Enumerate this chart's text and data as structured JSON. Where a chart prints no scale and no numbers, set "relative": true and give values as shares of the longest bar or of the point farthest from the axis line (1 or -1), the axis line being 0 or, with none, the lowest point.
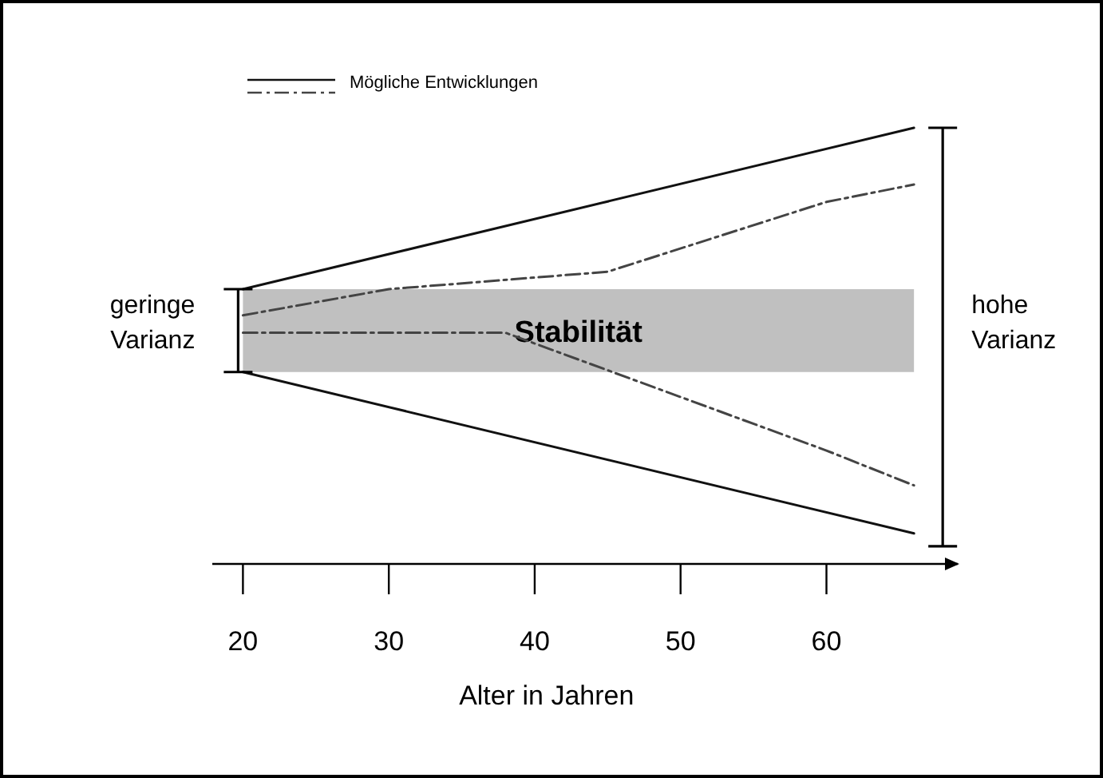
{
  "chart_data": {
    "type": "line",
    "relative": true,
    "xlabel": "Alter in Jahren",
    "legend_title": "Mögliche Entwicklungen",
    "legend": "top left",
    "grid": false,
    "xlim": [
      17.9,
      69
    ],
    "xticks": [
      20,
      30,
      40,
      50,
      60
    ],
    "series": [
      {
        "color": "#111111",
        "line_style": "solid",
        "x": [
          20,
          66
        ],
        "values": [
          0.63,
          1
        ]
      },
      {
        "color": "#111111",
        "line_style": "solid",
        "x": [
          20,
          66
        ],
        "values": [
          0.44,
          0.07
        ]
      },
      {
        "color": "#444444",
        "line_style": "dashed",
        "x": [
          20,
          30,
          45,
          60,
          66
        ],
        "values": [
          0.57,
          0.63,
          0.67,
          0.83,
          0.87
        ]
      },
      {
        "color": "#444444",
        "line_style": "dashed",
        "x": [
          20,
          38,
          60,
          66
        ],
        "values": [
          0.53,
          0.53,
          0.26,
          0.18
        ]
      }
    ],
    "bands": [
      {
        "axis": "y",
        "from": 0.44,
        "to": 0.63,
        "label": "Stabilität",
        "color": "#c0c0c0"
      }
    ],
    "annotations": [
      {
        "text": "geringe Varianz",
        "x": 20,
        "y": 0.535
      },
      {
        "text": "hohe Varianz",
        "x": 66,
        "y": 0.535
      }
    ]
  }
}
